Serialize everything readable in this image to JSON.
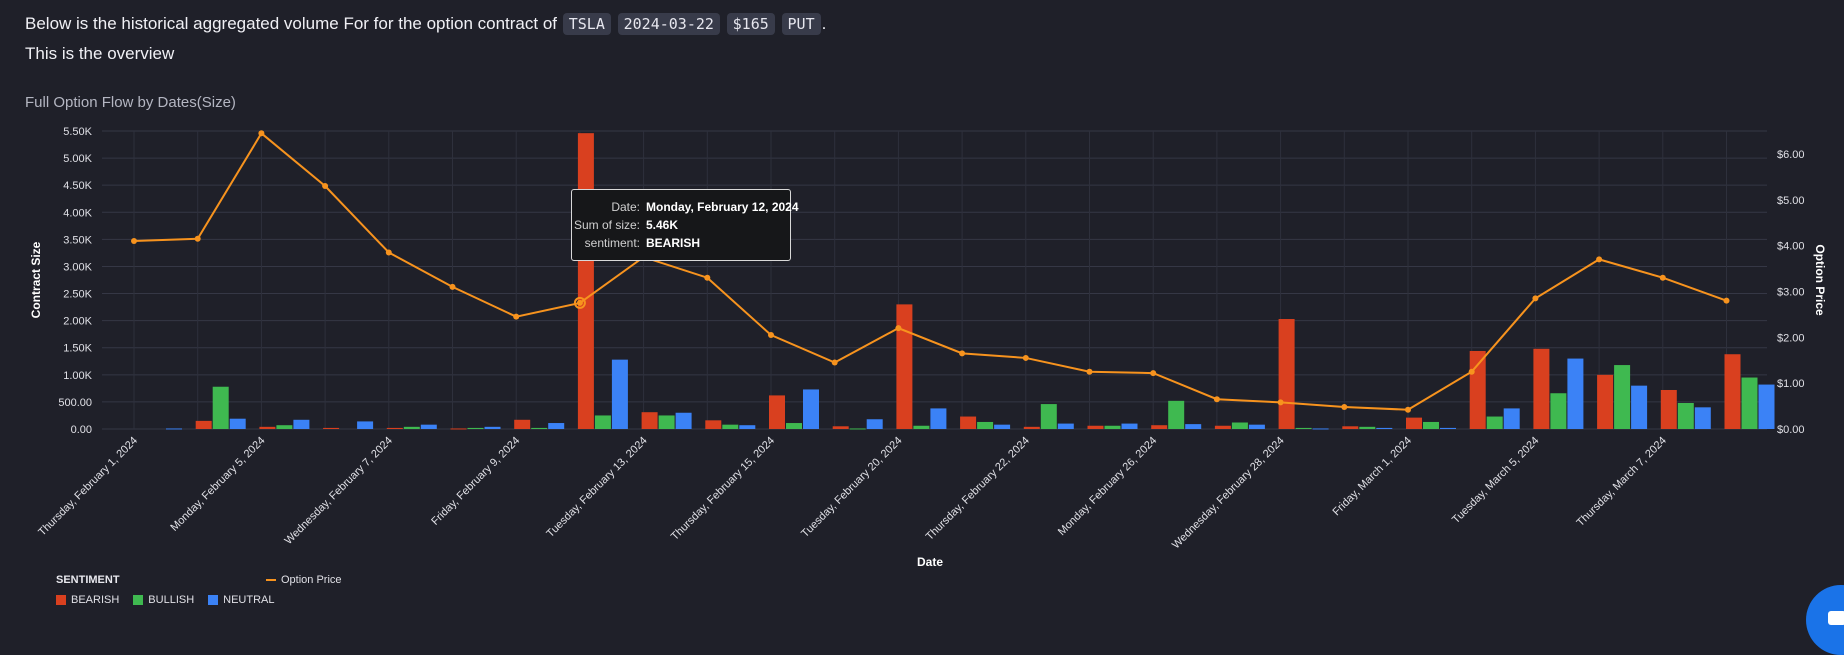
{
  "intro": {
    "text": "Below is the historical aggregated volume For for the option contract of",
    "symbol": "TSLA",
    "expiry": "2024-03-22",
    "strike": "$165",
    "type": "PUT",
    "end": "."
  },
  "overview": "This is the overview",
  "chart_title": "Full Option Flow by Dates(Size)",
  "tooltip": {
    "date_label": "Date:",
    "date_value": "Monday, February 12, 2024",
    "size_label": "Sum of size:",
    "size_value": "5.46K",
    "sentiment_label": "sentiment:",
    "sentiment_value": "BEARISH"
  },
  "legend": {
    "title": "SENTIMENT",
    "items": [
      "BEARISH",
      "BULLISH",
      "NEUTRAL"
    ],
    "line": "Option Price"
  },
  "colors": {
    "bearish": "#d9401f",
    "bullish": "#3fb950",
    "neutral": "#3b82f6",
    "line": "#f7931e"
  },
  "chart_data": {
    "type": "bar",
    "xlabel": "Date",
    "ylabel": "Contract Size",
    "y2label": "Option Price",
    "ylim": [
      0,
      5500
    ],
    "y2lim": [
      0,
      6.5
    ],
    "yticks": [
      "0.00",
      "500.00",
      "1.00K",
      "1.50K",
      "2.00K",
      "2.50K",
      "3.00K",
      "3.50K",
      "4.00K",
      "4.50K",
      "5.00K",
      "5.50K"
    ],
    "y2ticks": [
      "$0.00",
      "$1.00",
      "$2.00",
      "$3.00",
      "$4.00",
      "$5.00",
      "$6.00"
    ],
    "grid": true,
    "legend_position": "bottom-left",
    "categories": [
      "Thursday, February 1, 2024",
      "Friday, February 2, 2024",
      "Monday, February 5, 2024",
      "Tuesday, February 6, 2024",
      "Wednesday, February 7, 2024",
      "Thursday, February 8, 2024",
      "Friday, February 9, 2024",
      "Monday, February 12, 2024",
      "Tuesday, February 13, 2024",
      "Wednesday, February 14, 2024",
      "Thursday, February 15, 2024",
      "Friday, February 16, 2024",
      "Tuesday, February 20, 2024",
      "Wednesday, February 21, 2024",
      "Thursday, February 22, 2024",
      "Friday, February 23, 2024",
      "Monday, February 26, 2024",
      "Tuesday, February 27, 2024",
      "Wednesday, February 28, 2024",
      "Thursday, February 29, 2024",
      "Friday, March 1, 2024",
      "Monday, March 4, 2024",
      "Tuesday, March 5, 2024",
      "Wednesday, March 6, 2024",
      "Thursday, March 7, 2024",
      "Friday, March 8, 2024"
    ],
    "tick_labels": [
      "Thursday, February 1, 2024",
      "Monday, February 5, 2024",
      "Wednesday, February 7, 2024",
      "Friday, February 9, 2024",
      "Tuesday, February 13, 2024",
      "Thursday, February 15, 2024",
      "Tuesday, February 20, 2024",
      "Thursday, February 22, 2024",
      "Monday, February 26, 2024",
      "Wednesday, February 28, 2024",
      "Friday, March 1, 2024",
      "Tuesday, March 5, 2024",
      "Thursday, March 7, 2024"
    ],
    "series": [
      {
        "name": "BEARISH",
        "values": [
          0,
          150,
          40,
          20,
          20,
          10,
          170,
          5460,
          310,
          160,
          620,
          50,
          2300,
          230,
          40,
          60,
          70,
          60,
          2030,
          50,
          210,
          1440,
          1480,
          1000,
          720,
          1380
        ]
      },
      {
        "name": "BULLISH",
        "values": [
          0,
          780,
          70,
          0,
          40,
          20,
          20,
          250,
          250,
          80,
          110,
          10,
          60,
          130,
          460,
          60,
          520,
          120,
          20,
          40,
          130,
          230,
          660,
          1180,
          480,
          950
        ]
      },
      {
        "name": "NEUTRAL",
        "values": [
          10,
          190,
          170,
          140,
          80,
          40,
          110,
          1280,
          300,
          70,
          730,
          180,
          380,
          80,
          100,
          100,
          90,
          80,
          10,
          20,
          20,
          380,
          1300,
          800,
          400,
          820
        ]
      },
      {
        "name": "Option Price",
        "values": [
          4.1,
          4.15,
          6.45,
          5.3,
          3.85,
          3.1,
          2.45,
          2.75,
          3.75,
          3.3,
          2.05,
          1.45,
          2.2,
          1.65,
          1.55,
          1.25,
          1.22,
          0.65,
          0.58,
          0.48,
          0.42,
          1.25,
          2.85,
          3.7,
          3.3,
          2.8
        ]
      }
    ]
  }
}
